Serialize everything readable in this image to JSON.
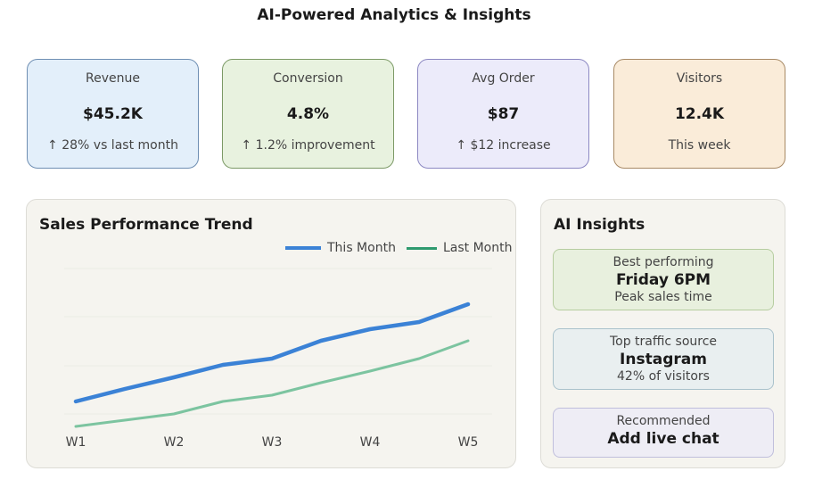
{
  "header": {
    "title": "AI-Powered Analytics & Insights"
  },
  "kpis": [
    {
      "label": "Revenue",
      "value": "$45.2K",
      "sub": "↑ 28% vs last month",
      "bg": "#e3effa",
      "border": "#6f8fb3"
    },
    {
      "label": "Conversion",
      "value": "4.8%",
      "sub": "↑ 1.2% improvement",
      "bg": "#e8f2df",
      "border": "#7c9a66"
    },
    {
      "label": "Avg Order",
      "value": "$87",
      "sub": "↑ $12 increase",
      "bg": "#ecebfa",
      "border": "#8c88c2"
    },
    {
      "label": "Visitors",
      "value": "12.4K",
      "sub": "This week",
      "bg": "#faecd9",
      "border": "#a88a66"
    }
  ],
  "chart_panel": {
    "title": "Sales Performance Trend",
    "legend": [
      {
        "label": "This Month",
        "color": "#3b82d6"
      },
      {
        "label": "Last Month",
        "color": "#2e9a6e"
      }
    ]
  },
  "chart_data": {
    "type": "line",
    "title": "Sales Performance Trend",
    "xlabel": "",
    "ylabel": "",
    "categories": [
      "W1",
      "W2",
      "W3",
      "W4",
      "W5"
    ],
    "x": [
      1,
      1.5,
      2,
      2.5,
      3,
      3.5,
      4,
      4.5,
      5
    ],
    "series": [
      {
        "name": "This Month",
        "color": "#3b82d6",
        "values": [
          41,
          55,
          68,
          82,
          89,
          109,
          122,
          130,
          150
        ]
      },
      {
        "name": "Last Month",
        "color": "#7cc4a0",
        "values": [
          13,
          20,
          27,
          41,
          48,
          62,
          75,
          89,
          109
        ]
      }
    ],
    "ylim": [
      0,
      190
    ],
    "grid": true,
    "legend_position": "top-right",
    "y_tick_labels_visible": false
  },
  "insights_panel": {
    "title": "AI Insights",
    "items": [
      {
        "label": "Best performing",
        "value": "Friday 6PM",
        "sub": "Peak sales time",
        "bg": "#e8f0de",
        "border": "#b6cda0"
      },
      {
        "label": "Top traffic source",
        "value": "Instagram",
        "sub": "42% of visitors",
        "bg": "#e9eff0",
        "border": "#aac2cc"
      },
      {
        "label": "Recommended",
        "value": "Add live chat",
        "sub": "",
        "bg": "#eeedf5",
        "border": "#c0bfdc"
      }
    ]
  }
}
